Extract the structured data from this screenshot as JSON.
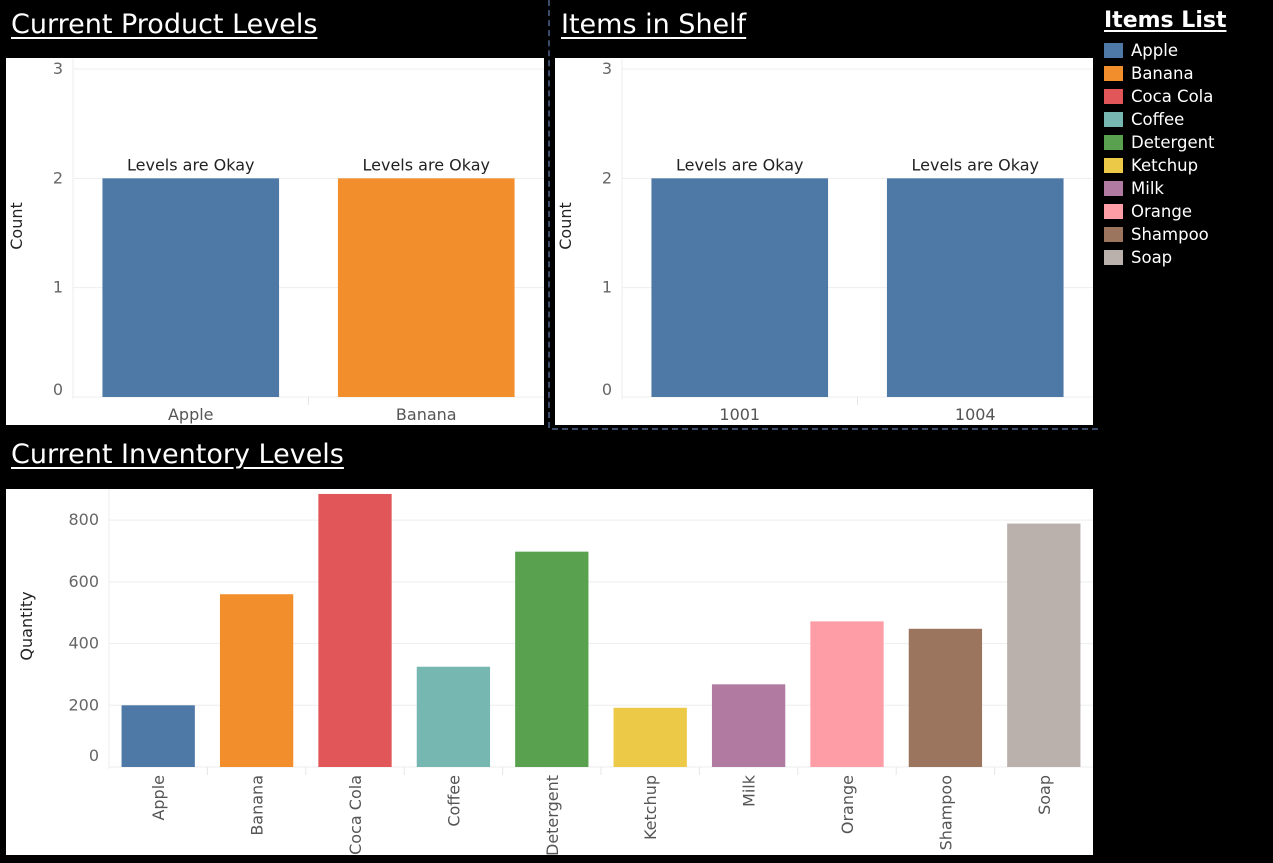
{
  "legend": {
    "title": "Items List",
    "items": [
      {
        "label": "Apple",
        "color": "#4e79a7"
      },
      {
        "label": "Banana",
        "color": "#f28e2b"
      },
      {
        "label": "Coca Cola",
        "color": "#e15759"
      },
      {
        "label": "Coffee",
        "color": "#76b7b2"
      },
      {
        "label": "Detergent",
        "color": "#59a14f"
      },
      {
        "label": "Ketchup",
        "color": "#edc948"
      },
      {
        "label": "Milk",
        "color": "#b07aa1"
      },
      {
        "label": "Orange",
        "color": "#ff9da7"
      },
      {
        "label": "Shampoo",
        "color": "#9c755f"
      },
      {
        "label": "Soap",
        "color": "#bab0ac"
      }
    ]
  },
  "chart_data": [
    {
      "type": "bar",
      "title": "Current Product Levels",
      "ylabel": "Count",
      "xlabel": "",
      "ylim": [
        0,
        3
      ],
      "yticks": [
        0,
        1,
        2,
        3
      ],
      "categories": [
        "Apple",
        "Banana"
      ],
      "values": [
        2,
        2
      ],
      "colors": [
        "#4e79a7",
        "#f28e2b"
      ],
      "data_labels": [
        "Levels are Okay",
        "Levels are Okay"
      ],
      "grid": true
    },
    {
      "type": "bar",
      "title": "Items in Shelf",
      "ylabel": "Count",
      "xlabel": "",
      "ylim": [
        0,
        3
      ],
      "yticks": [
        0,
        1,
        2,
        3
      ],
      "categories": [
        "1001",
        "1004"
      ],
      "values": [
        2,
        2
      ],
      "colors": [
        "#4e79a7",
        "#4e79a7"
      ],
      "data_labels": [
        "Levels are Okay",
        "Levels are Okay"
      ],
      "grid": true
    },
    {
      "type": "bar",
      "title": "Current Inventory Levels",
      "ylabel": "Quantity",
      "xlabel": "",
      "ylim": [
        0,
        880
      ],
      "yticks": [
        0,
        200,
        400,
        600,
        800
      ],
      "categories": [
        "Apple",
        "Banana",
        "Coca Cola",
        "Coffee",
        "Detergent",
        "Ketchup",
        "Milk",
        "Orange",
        "Shampoo",
        "Soap"
      ],
      "values": [
        200,
        560,
        885,
        325,
        698,
        192,
        268,
        472,
        448,
        789
      ],
      "colors": [
        "#4e79a7",
        "#f28e2b",
        "#e15759",
        "#76b7b2",
        "#59a14f",
        "#edc948",
        "#b07aa1",
        "#ff9da7",
        "#9c755f",
        "#bab0ac"
      ],
      "grid": true,
      "tick_label_rotation": "vertical"
    }
  ]
}
